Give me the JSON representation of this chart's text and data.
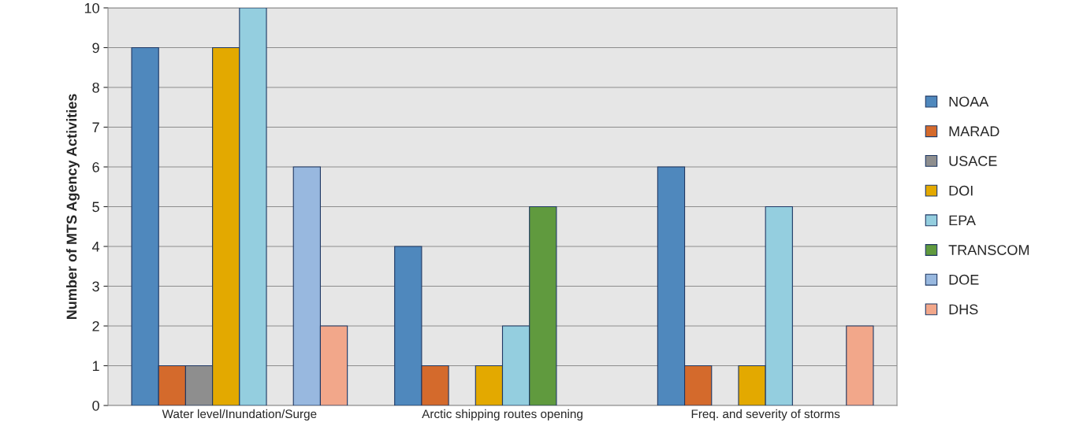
{
  "chart_data": {
    "type": "bar",
    "ylabel": "Number of MTS Agency Activities",
    "categories": [
      "Water level/Inundation/Surge",
      "Arctic shipping routes opening",
      "Freq. and severity of storms"
    ],
    "series": [
      {
        "name": "NOAA",
        "color": "#4f88bd",
        "values": [
          9,
          4,
          6
        ]
      },
      {
        "name": "MARAD",
        "color": "#d46a2c",
        "values": [
          1,
          1,
          1
        ]
      },
      {
        "name": "USACE",
        "color": "#8e8e8e",
        "values": [
          1,
          null,
          null
        ]
      },
      {
        "name": "DOI",
        "color": "#e3a900",
        "values": [
          9,
          1,
          1
        ]
      },
      {
        "name": "EPA",
        "color": "#94cedf",
        "values": [
          10,
          2,
          5
        ]
      },
      {
        "name": "TRANSCOM",
        "color": "#609a3e",
        "values": [
          null,
          5,
          null
        ]
      },
      {
        "name": "DOE",
        "color": "#98b8df",
        "values": [
          6,
          null,
          null
        ]
      },
      {
        "name": "DHS",
        "color": "#f2a78a",
        "values": [
          2,
          null,
          2
        ]
      }
    ],
    "ylim": [
      0,
      10
    ],
    "yticks": [
      0,
      1,
      2,
      3,
      4,
      5,
      6,
      7,
      8,
      9,
      10
    ],
    "grid": "y",
    "legend": "right"
  }
}
